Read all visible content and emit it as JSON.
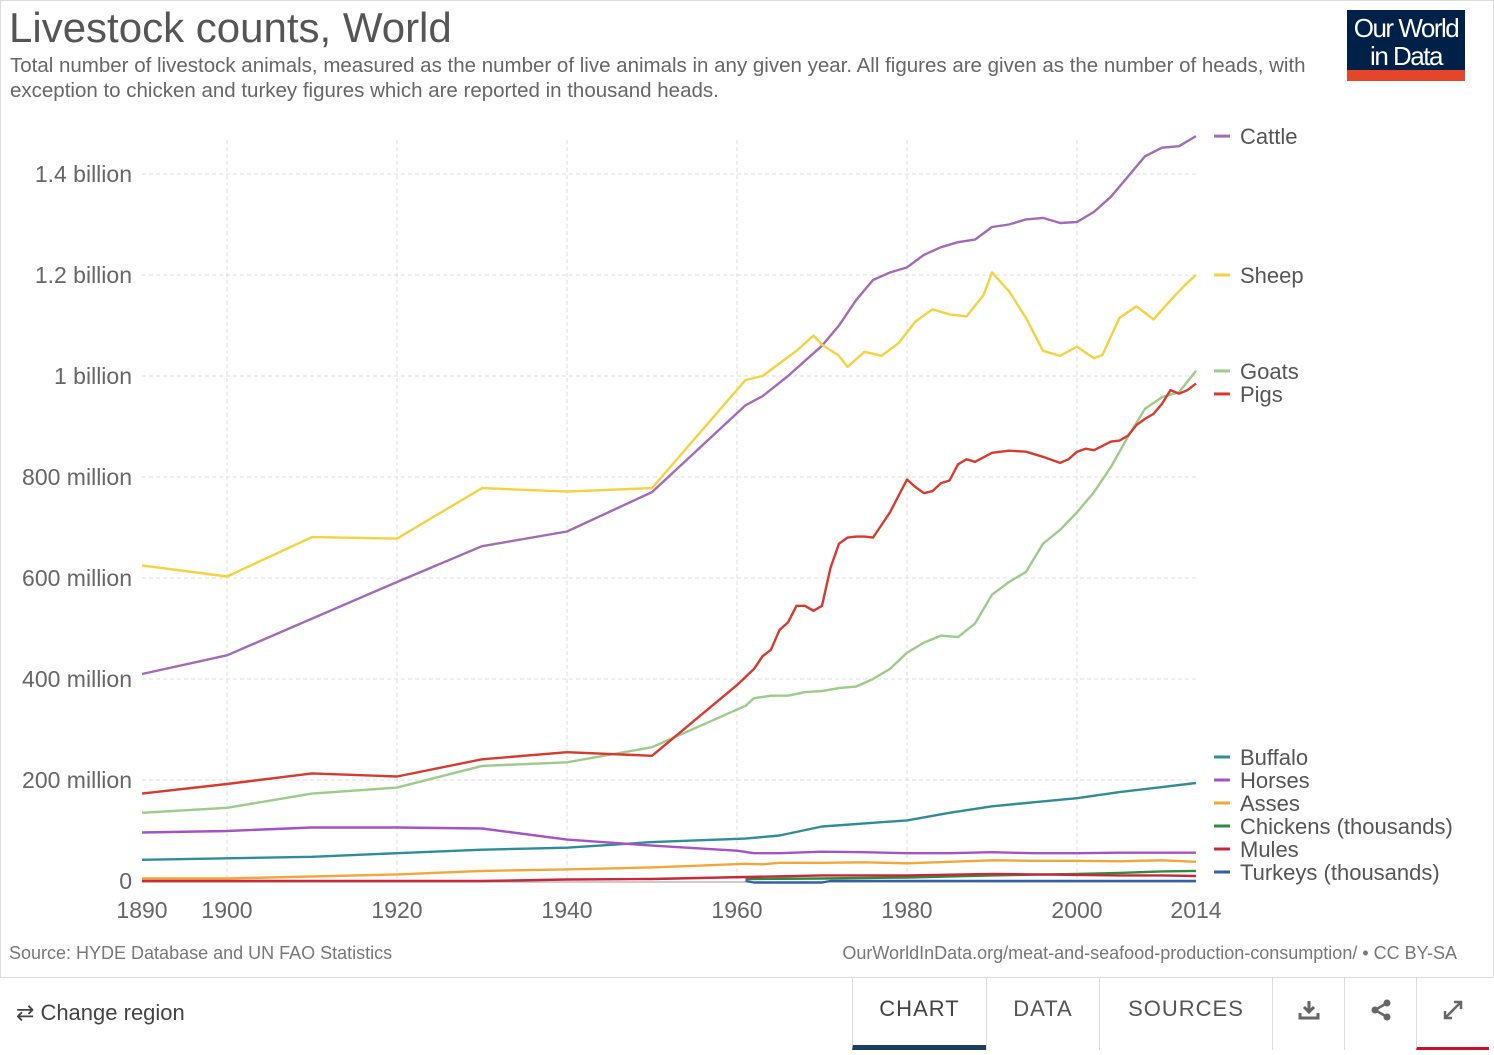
{
  "header": {
    "title": "Livestock counts, World",
    "subtitle": "Total number of livestock animals, measured as the number of live animals in any given year. All figures are given as the number of heads, with exception to chicken and turkey figures which are reported in thousand heads."
  },
  "logo": {
    "line1": "Our World",
    "line2": "in Data"
  },
  "footer": {
    "source": "Source: HYDE Database and UN FAO Statistics",
    "url": "OurWorldInData.org/meat-and-seafood-production-consumption/ • CC BY-SA"
  },
  "controls": {
    "change_region": "Change region",
    "tabs": [
      "CHART",
      "DATA",
      "SOURCES"
    ],
    "active_tab": "CHART",
    "icons": [
      "download-icon",
      "share-icon",
      "fullscreen-icon"
    ]
  },
  "chart_data": {
    "type": "line",
    "title": "Livestock counts, World",
    "xlabel": "",
    "ylabel": "",
    "xlim": [
      1890,
      2014
    ],
    "ylim": [
      0,
      1470000000
    ],
    "x_ticks": [
      1890,
      1900,
      1920,
      1940,
      1960,
      1980,
      2000,
      2014
    ],
    "y_ticks": [
      {
        "value": 0,
        "label": "0"
      },
      {
        "value": 200000000,
        "label": "200 million"
      },
      {
        "value": 400000000,
        "label": "400 million"
      },
      {
        "value": 600000000,
        "label": "600 million"
      },
      {
        "value": 800000000,
        "label": "800 million"
      },
      {
        "value": 1000000000,
        "label": "1 billion"
      },
      {
        "value": 1200000000,
        "label": "1.2 billion"
      },
      {
        "value": 1400000000,
        "label": "1.4 billion"
      }
    ],
    "grid": "dashed",
    "legend": "right, labels at line ends",
    "series": [
      {
        "name": "Cattle",
        "color": "#a36bb5",
        "points": [
          [
            1890,
            410
          ],
          [
            1900,
            447
          ],
          [
            1920,
            592
          ],
          [
            1930,
            663
          ],
          [
            1940,
            692
          ],
          [
            1950,
            770
          ],
          [
            1961,
            942
          ],
          [
            1963,
            960
          ],
          [
            1966,
            1000
          ],
          [
            1968,
            1030
          ],
          [
            1970,
            1060
          ],
          [
            1972,
            1100
          ],
          [
            1974,
            1150
          ],
          [
            1976,
            1190
          ],
          [
            1978,
            1205
          ],
          [
            1980,
            1215
          ],
          [
            1982,
            1240
          ],
          [
            1984,
            1255
          ],
          [
            1986,
            1265
          ],
          [
            1988,
            1270
          ],
          [
            1990,
            1295
          ],
          [
            1992,
            1300
          ],
          [
            1994,
            1310
          ],
          [
            1996,
            1313
          ],
          [
            1998,
            1303
          ],
          [
            2000,
            1305
          ],
          [
            2002,
            1325
          ],
          [
            2004,
            1355
          ],
          [
            2006,
            1395
          ],
          [
            2008,
            1435
          ],
          [
            2010,
            1452
          ],
          [
            2012,
            1455
          ],
          [
            2014,
            1475
          ]
        ]
      },
      {
        "name": "Sheep",
        "color": "#f5d23f",
        "points": [
          [
            1890,
            625
          ],
          [
            1900,
            603
          ],
          [
            1910,
            681
          ],
          [
            1920,
            678
          ],
          [
            1930,
            778
          ],
          [
            1940,
            771
          ],
          [
            1950,
            778
          ],
          [
            1961,
            992
          ],
          [
            1963,
            1000
          ],
          [
            1965,
            1025
          ],
          [
            1967,
            1050
          ],
          [
            1969,
            1080
          ],
          [
            1970,
            1062
          ],
          [
            1972,
            1040
          ],
          [
            1973,
            1018
          ],
          [
            1975,
            1048
          ],
          [
            1977,
            1040
          ],
          [
            1979,
            1065
          ],
          [
            1981,
            1108
          ],
          [
            1983,
            1132
          ],
          [
            1985,
            1122
          ],
          [
            1987,
            1118
          ],
          [
            1989,
            1160
          ],
          [
            1990,
            1205
          ],
          [
            1992,
            1168
          ],
          [
            1994,
            1115
          ],
          [
            1996,
            1050
          ],
          [
            1998,
            1040
          ],
          [
            2000,
            1058
          ],
          [
            2002,
            1035
          ],
          [
            2003,
            1042
          ],
          [
            2005,
            1115
          ],
          [
            2007,
            1138
          ],
          [
            2009,
            1112
          ],
          [
            2011,
            1150
          ],
          [
            2013,
            1185
          ],
          [
            2014,
            1200
          ]
        ]
      },
      {
        "name": "Goats",
        "color": "#9dcb8a",
        "points": [
          [
            1890,
            135
          ],
          [
            1900,
            145
          ],
          [
            1910,
            173
          ],
          [
            1920,
            185
          ],
          [
            1930,
            228
          ],
          [
            1940,
            235
          ],
          [
            1950,
            265
          ],
          [
            1961,
            347
          ],
          [
            1962,
            362
          ],
          [
            1964,
            367
          ],
          [
            1966,
            367
          ],
          [
            1968,
            374
          ],
          [
            1970,
            376
          ],
          [
            1972,
            382
          ],
          [
            1974,
            385
          ],
          [
            1976,
            400
          ],
          [
            1978,
            420
          ],
          [
            1980,
            452
          ],
          [
            1982,
            472
          ],
          [
            1984,
            486
          ],
          [
            1986,
            483
          ],
          [
            1988,
            510
          ],
          [
            1990,
            567
          ],
          [
            1992,
            592
          ],
          [
            1994,
            612
          ],
          [
            1996,
            668
          ],
          [
            1998,
            695
          ],
          [
            2000,
            730
          ],
          [
            2002,
            770
          ],
          [
            2004,
            820
          ],
          [
            2006,
            880
          ],
          [
            2008,
            935
          ],
          [
            2010,
            958
          ],
          [
            2012,
            968
          ],
          [
            2014,
            1010
          ]
        ]
      },
      {
        "name": "Pigs",
        "color": "#d73a2f",
        "points": [
          [
            1890,
            173
          ],
          [
            1900,
            192
          ],
          [
            1910,
            213
          ],
          [
            1920,
            207
          ],
          [
            1930,
            241
          ],
          [
            1940,
            255
          ],
          [
            1950,
            248
          ],
          [
            1960,
            388
          ],
          [
            1962,
            420
          ],
          [
            1963,
            445
          ],
          [
            1964,
            458
          ],
          [
            1965,
            497
          ],
          [
            1966,
            512
          ],
          [
            1967,
            545
          ],
          [
            1968,
            545
          ],
          [
            1969,
            535
          ],
          [
            1970,
            545
          ],
          [
            1971,
            620
          ],
          [
            1972,
            668
          ],
          [
            1973,
            680
          ],
          [
            1974,
            682
          ],
          [
            1975,
            682
          ],
          [
            1976,
            680
          ],
          [
            1977,
            705
          ],
          [
            1978,
            730
          ],
          [
            1980,
            795
          ],
          [
            1981,
            780
          ],
          [
            1982,
            768
          ],
          [
            1983,
            772
          ],
          [
            1984,
            788
          ],
          [
            1985,
            793
          ],
          [
            1986,
            825
          ],
          [
            1987,
            835
          ],
          [
            1988,
            830
          ],
          [
            1990,
            848
          ],
          [
            1992,
            852
          ],
          [
            1994,
            850
          ],
          [
            1996,
            840
          ],
          [
            1998,
            828
          ],
          [
            1999,
            835
          ],
          [
            2000,
            850
          ],
          [
            2001,
            856
          ],
          [
            2002,
            853
          ],
          [
            2004,
            870
          ],
          [
            2005,
            872
          ],
          [
            2006,
            882
          ],
          [
            2007,
            903
          ],
          [
            2008,
            915
          ],
          [
            2009,
            925
          ],
          [
            2010,
            945
          ],
          [
            2011,
            972
          ],
          [
            2012,
            965
          ],
          [
            2013,
            972
          ],
          [
            2014,
            985
          ]
        ]
      },
      {
        "name": "Buffalo",
        "color": "#2f8d95",
        "points": [
          [
            1890,
            42
          ],
          [
            1900,
            45
          ],
          [
            1910,
            48
          ],
          [
            1920,
            55
          ],
          [
            1930,
            62
          ],
          [
            1940,
            66
          ],
          [
            1950,
            77
          ],
          [
            1961,
            84
          ],
          [
            1965,
            90
          ],
          [
            1970,
            108
          ],
          [
            1975,
            114
          ],
          [
            1980,
            120
          ],
          [
            1985,
            135
          ],
          [
            1990,
            148
          ],
          [
            1995,
            156
          ],
          [
            2000,
            164
          ],
          [
            2005,
            176
          ],
          [
            2010,
            186
          ],
          [
            2014,
            194
          ]
        ]
      },
      {
        "name": "Horses",
        "color": "#a553c4",
        "points": [
          [
            1890,
            96
          ],
          [
            1900,
            99
          ],
          [
            1910,
            106
          ],
          [
            1920,
            106
          ],
          [
            1930,
            104
          ],
          [
            1940,
            82
          ],
          [
            1950,
            70
          ],
          [
            1960,
            60
          ],
          [
            1962,
            55
          ],
          [
            1965,
            55
          ],
          [
            1970,
            58
          ],
          [
            1975,
            57
          ],
          [
            1980,
            55
          ],
          [
            1985,
            55
          ],
          [
            1990,
            57
          ],
          [
            1995,
            55
          ],
          [
            2000,
            55
          ],
          [
            2005,
            56
          ],
          [
            2010,
            56
          ],
          [
            2014,
            56
          ]
        ]
      },
      {
        "name": "Asses",
        "color": "#f2a73b",
        "points": [
          [
            1890,
            5
          ],
          [
            1900,
            5
          ],
          [
            1910,
            9
          ],
          [
            1920,
            13
          ],
          [
            1930,
            20
          ],
          [
            1940,
            23
          ],
          [
            1950,
            27
          ],
          [
            1961,
            34
          ],
          [
            1963,
            33
          ],
          [
            1965,
            36
          ],
          [
            1970,
            36
          ],
          [
            1975,
            37
          ],
          [
            1980,
            35
          ],
          [
            1985,
            38
          ],
          [
            1990,
            41
          ],
          [
            1995,
            40
          ],
          [
            2000,
            40
          ],
          [
            2005,
            39
          ],
          [
            2010,
            41
          ],
          [
            2014,
            38
          ]
        ]
      },
      {
        "name": "Chickens (thousands)",
        "color": "#2f8c3c",
        "points": [
          [
            1961,
            4
          ],
          [
            1970,
            5
          ],
          [
            1980,
            7
          ],
          [
            1990,
            11
          ],
          [
            2000,
            14
          ],
          [
            2005,
            16
          ],
          [
            2010,
            19
          ],
          [
            2014,
            20
          ]
        ]
      },
      {
        "name": "Mules",
        "color": "#c8283a",
        "points": [
          [
            1890,
            0
          ],
          [
            1900,
            0
          ],
          [
            1920,
            0
          ],
          [
            1930,
            0
          ],
          [
            1940,
            3
          ],
          [
            1950,
            4
          ],
          [
            1961,
            8
          ],
          [
            1970,
            11
          ],
          [
            1980,
            11
          ],
          [
            1990,
            14
          ],
          [
            2000,
            12
          ],
          [
            2005,
            11
          ],
          [
            2010,
            11
          ],
          [
            2014,
            10
          ]
        ]
      },
      {
        "name": "Turkeys (thousands)",
        "color": "#3260a8",
        "points": [
          [
            1961,
            0
          ],
          [
            1962,
            -3
          ],
          [
            1970,
            -3
          ],
          [
            1971,
            0
          ],
          [
            1980,
            0
          ],
          [
            1990,
            0
          ],
          [
            2000,
            0
          ],
          [
            2014,
            0
          ]
        ]
      }
    ]
  }
}
